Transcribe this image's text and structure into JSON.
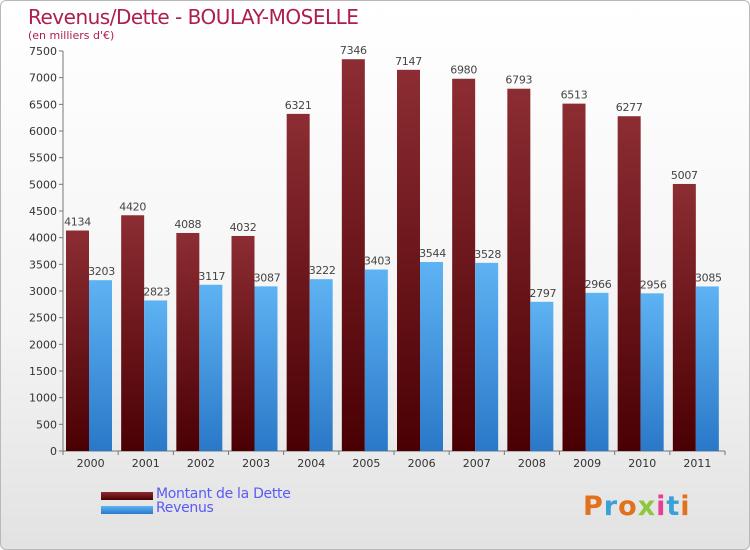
{
  "chart_data": {
    "type": "bar",
    "title": "Revenus/Dette - BOULAY-MOSELLE",
    "subtitle": "(en milliers d'€)",
    "categories": [
      "2000",
      "2001",
      "2002",
      "2003",
      "2004",
      "2005",
      "2006",
      "2007",
      "2008",
      "2009",
      "2010",
      "2011"
    ],
    "series": [
      {
        "name": "Montant de la Dette",
        "values": [
          4134,
          4420,
          4088,
          4032,
          6321,
          7346,
          7147,
          6980,
          6793,
          6513,
          6277,
          5007
        ],
        "color": "#6b0f14"
      },
      {
        "name": "Revenus",
        "values": [
          3203,
          2823,
          3117,
          3087,
          3222,
          3403,
          3544,
          3528,
          2797,
          2966,
          2956,
          3085
        ],
        "color": "#4aa3e8"
      }
    ],
    "ylim": [
      0,
      7500
    ],
    "yticks": [
      0,
      500,
      1000,
      1500,
      2000,
      2500,
      3000,
      3500,
      4000,
      4500,
      5000,
      5500,
      6000,
      6500,
      7000,
      7500
    ],
    "grid": false,
    "legend_position": "bottom-left"
  },
  "logo_text": "Proxiti",
  "colors": {
    "title": "#ad1e4f",
    "legend_text": "#5a5af5",
    "axis": "#666666",
    "label": "#444444"
  }
}
